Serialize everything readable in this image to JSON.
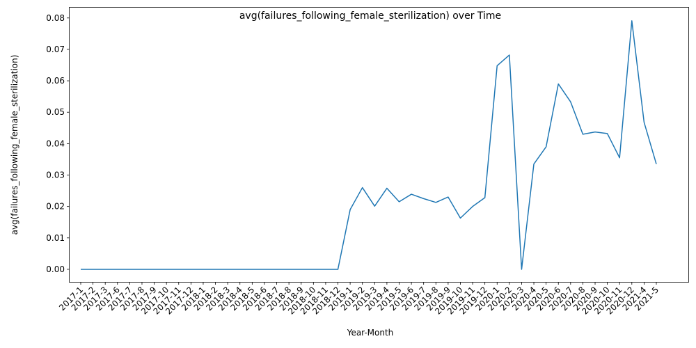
{
  "chart_data": {
    "type": "line",
    "title": "avg(failures_following_female_sterilization) over Time",
    "xlabel": "Year-Month",
    "ylabel": "avg(failures_following_female_sterilization)",
    "ylim": [
      -0.004,
      0.0835
    ],
    "yticks": [
      "0.00",
      "0.01",
      "0.02",
      "0.03",
      "0.04",
      "0.05",
      "0.06",
      "0.07",
      "0.08"
    ],
    "grid": false,
    "line_color": "#1f77b4",
    "categories": [
      "2017-1",
      "2017-2",
      "2017-3",
      "2017-6",
      "2017-7",
      "2017-8",
      "2017-9",
      "2017-10",
      "2017-11",
      "2017-12",
      "2018-1",
      "2018-2",
      "2018-3",
      "2018-4",
      "2018-5",
      "2018-6",
      "2018-7",
      "2018-8",
      "2018-9",
      "2018-10",
      "2018-11",
      "2018-12",
      "2019-1",
      "2019-2",
      "2019-3",
      "2019-4",
      "2019-5",
      "2019-6",
      "2019-7",
      "2019-8",
      "2019-9",
      "2019-10",
      "2019-11",
      "2019-12",
      "2020-1",
      "2020-2",
      "2020-3",
      "2020-4",
      "2020-5",
      "2020-6",
      "2020-7",
      "2020-8",
      "2020-9",
      "2020-10",
      "2020-11",
      "2020-12",
      "2021-4",
      "2021-5"
    ],
    "series": [
      {
        "values": [
          0,
          0,
          0,
          0,
          0,
          0,
          0,
          0,
          0,
          0,
          0,
          0,
          0,
          0,
          0,
          0,
          0,
          0,
          0,
          0,
          0,
          0,
          0.019,
          0.026,
          0.0201,
          0.0258,
          0.0215,
          0.0239,
          0.0225,
          0.0213,
          0.023,
          0.0163,
          0.02,
          0.0228,
          0.0648,
          0.0682,
          0,
          0.0335,
          0.039,
          0.059,
          0.0533,
          0.043,
          0.0437,
          0.0432,
          0.0355,
          0.0791,
          0.0468,
          0.0335
        ]
      }
    ]
  }
}
